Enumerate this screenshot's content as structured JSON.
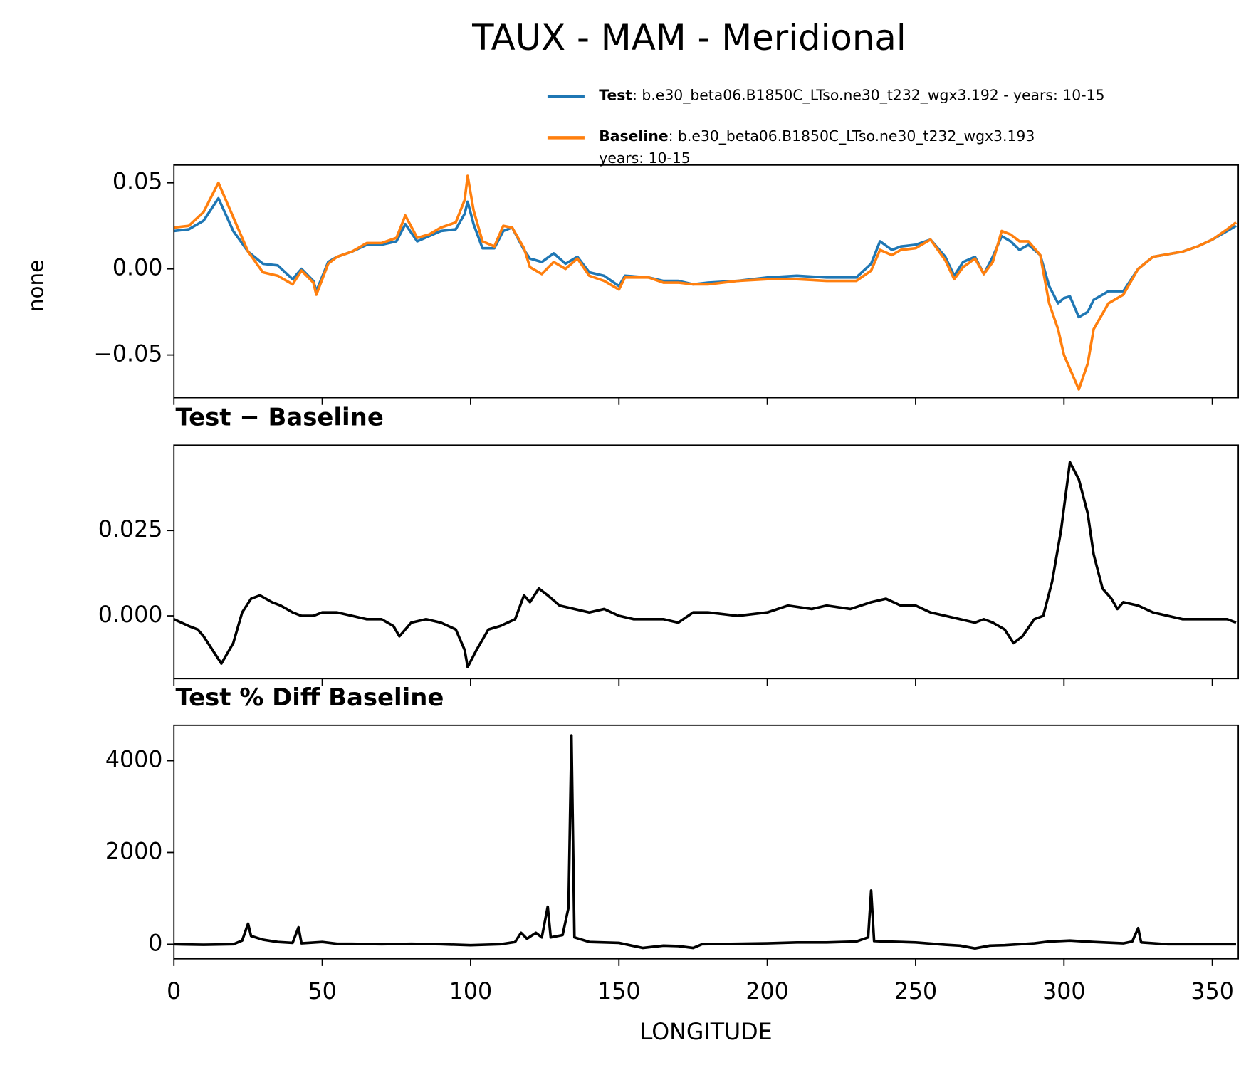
{
  "chart_data": [
    {
      "type": "line",
      "title": "TAUX - MAM - Meridional",
      "ylabel": "none",
      "legend": [
        {
          "name": "Test",
          "label_lines": [
            ": b.e30_beta06.B1850C_LTso.ne30_t232_wgx3.192 - years: 10-15"
          ]
        },
        {
          "name": "Baseline",
          "label_lines": [
            ": b.e30_beta06.B1850C_LTso.ne30_t232_wgx3.193",
            "years: 10-15"
          ]
        }
      ],
      "legend_position": "upper right",
      "x": [
        0,
        5,
        10,
        15,
        20,
        25,
        30,
        35,
        40,
        43,
        47,
        48,
        52,
        55,
        60,
        65,
        70,
        75,
        78,
        82,
        86,
        90,
        95,
        98,
        99,
        101,
        104,
        108,
        111,
        114,
        118,
        120,
        124,
        128,
        132,
        136,
        140,
        145,
        150,
        152,
        160,
        165,
        170,
        175,
        180,
        190,
        200,
        210,
        220,
        230,
        235,
        238,
        242,
        245,
        250,
        255,
        260,
        263,
        266,
        270,
        273,
        276,
        279,
        282,
        285,
        288,
        292,
        295,
        298,
        300,
        302,
        305,
        308,
        310,
        315,
        320,
        325,
        330,
        340,
        345,
        350,
        355,
        358
      ],
      "series": [
        {
          "name": "Test",
          "color": "#1f77b4",
          "values": [
            0.022,
            0.023,
            0.028,
            0.041,
            0.022,
            0.01,
            0.003,
            0.002,
            -0.006,
            0.0,
            -0.007,
            -0.013,
            0.004,
            0.007,
            0.01,
            0.014,
            0.014,
            0.016,
            0.026,
            0.016,
            0.019,
            0.022,
            0.023,
            0.032,
            0.039,
            0.026,
            0.012,
            0.012,
            0.022,
            0.024,
            0.011,
            0.006,
            0.004,
            0.009,
            0.003,
            0.007,
            -0.002,
            -0.004,
            -0.01,
            -0.004,
            -0.005,
            -0.007,
            -0.007,
            -0.009,
            -0.008,
            -0.007,
            -0.005,
            -0.004,
            -0.005,
            -0.005,
            0.003,
            0.016,
            0.011,
            0.013,
            0.014,
            0.017,
            0.007,
            -0.004,
            0.004,
            0.007,
            -0.003,
            0.007,
            0.019,
            0.016,
            0.011,
            0.014,
            0.008,
            -0.01,
            -0.02,
            -0.017,
            -0.016,
            -0.028,
            -0.025,
            -0.018,
            -0.013,
            -0.013,
            0.0,
            0.007,
            0.01,
            0.013,
            0.017,
            0.022,
            0.025
          ]
        },
        {
          "name": "Baseline",
          "color": "#ff7f0e",
          "values": [
            0.024,
            0.025,
            0.033,
            0.05,
            0.03,
            0.01,
            -0.002,
            -0.004,
            -0.009,
            -0.001,
            -0.008,
            -0.015,
            0.003,
            0.007,
            0.01,
            0.015,
            0.015,
            0.018,
            0.031,
            0.018,
            0.02,
            0.024,
            0.027,
            0.04,
            0.054,
            0.034,
            0.016,
            0.013,
            0.025,
            0.024,
            0.012,
            0.001,
            -0.003,
            0.004,
            0.0,
            0.006,
            -0.004,
            -0.007,
            -0.012,
            -0.005,
            -0.005,
            -0.008,
            -0.008,
            -0.009,
            -0.009,
            -0.007,
            -0.006,
            -0.006,
            -0.007,
            -0.007,
            -0.001,
            0.011,
            0.008,
            0.011,
            0.012,
            0.017,
            0.005,
            -0.006,
            0.001,
            0.006,
            -0.003,
            0.004,
            0.022,
            0.02,
            0.016,
            0.016,
            0.008,
            -0.02,
            -0.035,
            -0.05,
            -0.058,
            -0.07,
            -0.055,
            -0.035,
            -0.02,
            -0.015,
            0.0,
            0.007,
            0.01,
            0.013,
            0.017,
            0.023,
            0.027
          ]
        }
      ],
      "xlim": [
        0,
        358.75
      ],
      "xticks": [
        0,
        50,
        100,
        150,
        200,
        250,
        300,
        350
      ],
      "ylim": [
        -0.0748,
        0.0603
      ],
      "yticks": [
        {
          "value": -0.05,
          "label": "−0.05"
        },
        {
          "value": 0,
          "label": "0.00"
        },
        {
          "value": 0.05,
          "label": "0.05"
        }
      ]
    },
    {
      "type": "line",
      "title": "Test − Baseline",
      "x": [
        0,
        5,
        8,
        10,
        13,
        16,
        20,
        23,
        26,
        29,
        33,
        36,
        40,
        43,
        47,
        50,
        55,
        60,
        65,
        70,
        74,
        76,
        80,
        85,
        90,
        95,
        98,
        99,
        102,
        106,
        110,
        115,
        118,
        120,
        123,
        126,
        130,
        135,
        140,
        145,
        150,
        155,
        160,
        165,
        170,
        175,
        180,
        190,
        200,
        207,
        215,
        220,
        228,
        235,
        240,
        245,
        250,
        255,
        260,
        265,
        270,
        273,
        276,
        280,
        283,
        286,
        290,
        293,
        296,
        299,
        302,
        305,
        308,
        310,
        313,
        316,
        318,
        320,
        325,
        330,
        340,
        345,
        350,
        355,
        358
      ],
      "series": [
        {
          "color": "#000000",
          "values": [
            -0.001,
            -0.003,
            -0.004,
            -0.006,
            -0.01,
            -0.014,
            -0.008,
            0.001,
            0.005,
            0.006,
            0.004,
            0.003,
            0.001,
            0.0,
            0.0,
            0.001,
            0.001,
            0.0,
            -0.001,
            -0.001,
            -0.003,
            -0.006,
            -0.002,
            -0.001,
            -0.002,
            -0.004,
            -0.01,
            -0.015,
            -0.01,
            -0.004,
            -0.003,
            -0.001,
            0.006,
            0.004,
            0.008,
            0.006,
            0.003,
            0.002,
            0.001,
            0.002,
            0.0,
            -0.001,
            -0.001,
            -0.001,
            -0.002,
            0.001,
            0.001,
            0.0,
            0.001,
            0.003,
            0.002,
            0.003,
            0.002,
            0.004,
            0.005,
            0.003,
            0.003,
            0.001,
            0.0,
            -0.001,
            -0.002,
            -0.001,
            -0.002,
            -0.004,
            -0.008,
            -0.006,
            -0.001,
            0.0,
            0.01,
            0.025,
            0.045,
            0.04,
            0.03,
            0.018,
            0.008,
            0.005,
            0.002,
            0.004,
            0.003,
            0.001,
            -0.001,
            -0.001,
            -0.001,
            -0.001,
            -0.002
          ]
        }
      ],
      "xlim": [
        0,
        358.75
      ],
      "xticks": [
        0,
        50,
        100,
        150,
        200,
        250,
        300,
        350
      ],
      "ylim": [
        -0.0184,
        0.05
      ],
      "yticks": [
        {
          "value": 0,
          "label": "0.000"
        },
        {
          "value": 0.025,
          "label": "0.025"
        }
      ]
    },
    {
      "type": "line",
      "title": "Test % Diff Baseline",
      "xlabel": "LONGITUDE",
      "x": [
        0,
        10,
        20,
        23,
        25,
        26,
        30,
        35,
        40,
        42,
        43,
        50,
        55,
        60,
        70,
        80,
        90,
        100,
        110,
        115,
        117,
        119,
        122,
        124,
        126,
        127,
        131,
        133,
        134,
        135,
        140,
        150,
        158,
        165,
        170,
        175,
        178,
        190,
        200,
        210,
        220,
        230,
        234,
        235,
        236,
        240,
        250,
        260,
        265,
        270,
        275,
        280,
        290,
        295,
        302,
        310,
        320,
        323,
        325,
        326,
        335,
        345,
        355,
        358
      ],
      "series": [
        {
          "color": "#000000",
          "values": [
            0,
            -10,
            0,
            80,
            450,
            180,
            100,
            50,
            30,
            370,
            20,
            50,
            10,
            10,
            0,
            10,
            0,
            -20,
            0,
            50,
            250,
            120,
            250,
            150,
            820,
            150,
            200,
            800,
            4550,
            150,
            50,
            30,
            -80,
            -30,
            -40,
            -80,
            0,
            10,
            20,
            40,
            40,
            60,
            150,
            1170,
            70,
            60,
            40,
            -10,
            -30,
            -90,
            -30,
            -20,
            20,
            60,
            80,
            50,
            20,
            60,
            350,
            40,
            0,
            0,
            0,
            0
          ]
        }
      ],
      "xlim": [
        0,
        358.75
      ],
      "xticks": [
        0,
        50,
        100,
        150,
        200,
        250,
        300,
        350
      ],
      "ylim": [
        -316,
        4772
      ],
      "yticks": [
        0,
        2000,
        4000
      ]
    }
  ]
}
